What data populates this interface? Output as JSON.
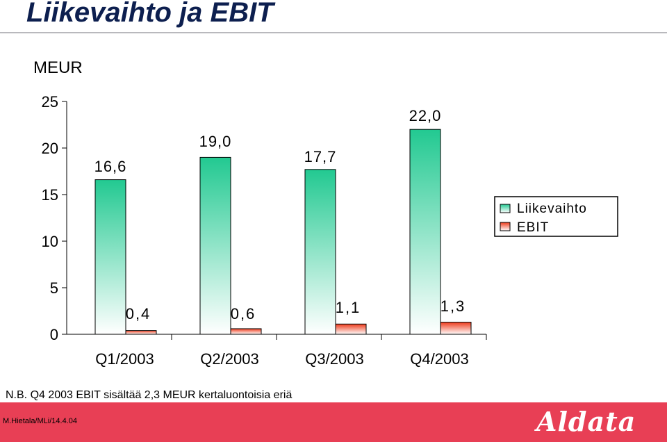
{
  "page": {
    "title": "Liikevaihto ja EBIT",
    "unit_label": "MEUR",
    "footnote": "N.B. Q4  2003 EBIT sisältää 2,3 MEUR kertaluontoisia eriä",
    "author": "M.Hietala/MLi/14.4.04",
    "logo": "Aldata"
  },
  "colors": {
    "revenue_top": "#22c991",
    "revenue_bottom": "#ffffff",
    "ebit_top": "#ee3b1c",
    "ebit_bottom": "#ffffff",
    "footer": "#e83f55",
    "title": "#0d1f4f"
  },
  "chart_data": {
    "type": "bar",
    "title": "Liikevaihto ja EBIT",
    "ylabel": "MEUR",
    "xlabel": "",
    "categories": [
      "Q1/2003",
      "Q2/2003",
      "Q3/2003",
      "Q4/2003"
    ],
    "series": [
      {
        "name": "Liikevaihto",
        "values": [
          16.6,
          19.0,
          17.7,
          22.0
        ],
        "labels": [
          "16,6",
          "19,0",
          "17,7",
          "22,0"
        ]
      },
      {
        "name": "EBIT",
        "values": [
          0.4,
          0.6,
          1.1,
          1.3
        ],
        "labels": [
          "0,4",
          "0,6",
          "1,1",
          "1,3"
        ]
      }
    ],
    "yticks": [
      0,
      5,
      10,
      15,
      20,
      25
    ],
    "ylim": [
      0,
      25
    ],
    "grid": false,
    "legend": "right"
  }
}
